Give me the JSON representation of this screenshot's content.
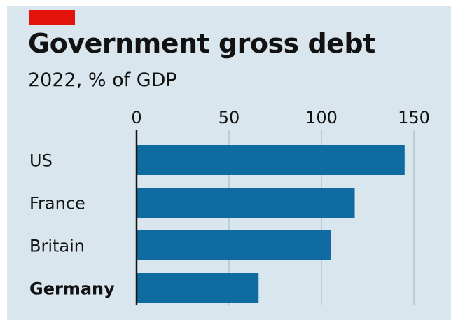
{
  "header": {
    "title": "Government gross debt",
    "subtitle": "2022, % of GDP"
  },
  "colors": {
    "background": "#d9e6ed",
    "bar": "#0f6ba1",
    "accent": "#e3120b",
    "gridline": "#b5c3cb",
    "axis": "#121212",
    "text": "#121212"
  },
  "chart_data": {
    "type": "bar",
    "orientation": "horizontal",
    "title": "Government gross debt",
    "subtitle": "2022, % of GDP",
    "categories": [
      "US",
      "France",
      "Britain",
      "Germany"
    ],
    "highlighted_category": "Germany",
    "values": [
      145,
      118,
      105,
      66
    ],
    "xlim": [
      0,
      150
    ],
    "x_ticks": [
      0,
      50,
      100,
      150
    ],
    "x_tick_labels": [
      "0",
      "50",
      "100",
      "150"
    ],
    "x_axis_position": "top",
    "grid": true,
    "xlabel": "",
    "ylabel": ""
  }
}
